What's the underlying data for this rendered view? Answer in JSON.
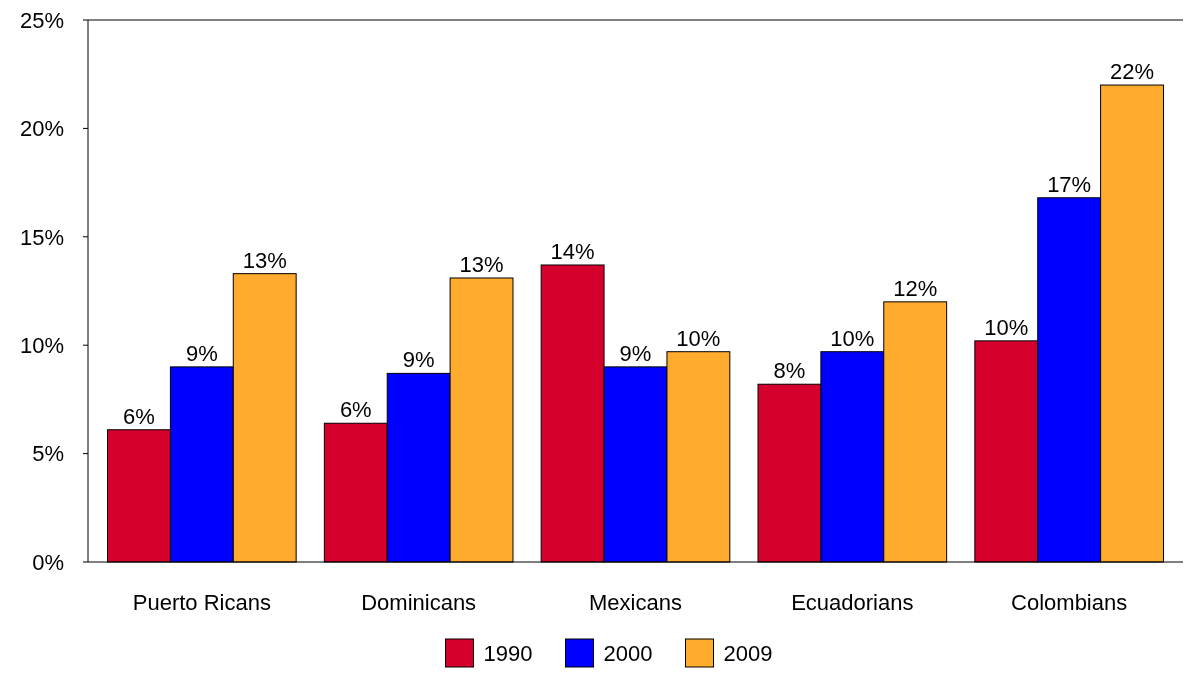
{
  "chart_data": {
    "type": "bar",
    "categories": [
      "Puerto Ricans",
      "Dominicans",
      "Mexicans",
      "Ecuadorians",
      "Colombians"
    ],
    "series": [
      {
        "name": "1990",
        "color": "#d6002d",
        "values": [
          6.1,
          6.4,
          13.7,
          8.2,
          10.2
        ],
        "value_labels": [
          "6%",
          "6%",
          "14%",
          "8%",
          "10%"
        ]
      },
      {
        "name": "2000",
        "color": "#0000ff",
        "values": [
          9.0,
          8.7,
          9.0,
          9.7,
          16.8
        ],
        "value_labels": [
          "9%",
          "9%",
          "9%",
          "10%",
          "17%"
        ]
      },
      {
        "name": "2009",
        "color": "#ffab2e",
        "values": [
          13.3,
          13.1,
          9.7,
          12.0,
          22.0
        ],
        "value_labels": [
          "13%",
          "13%",
          "10%",
          "12%",
          "22%"
        ]
      }
    ],
    "ylim": [
      0,
      25
    ],
    "yticks": [
      {
        "value": 0,
        "label": "0%"
      },
      {
        "value": 5,
        "label": "5%"
      },
      {
        "value": 10,
        "label": "10%"
      },
      {
        "value": 15,
        "label": "15%"
      },
      {
        "value": 20,
        "label": "20%"
      },
      {
        "value": 25,
        "label": "25%"
      }
    ],
    "grid": false,
    "legend": "bottom"
  }
}
